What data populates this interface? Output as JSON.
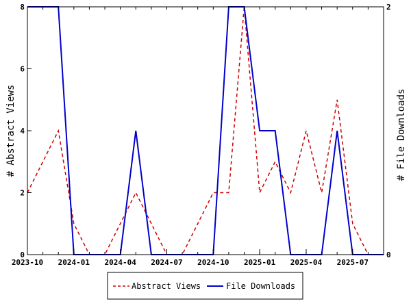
{
  "chart_data": {
    "type": "line",
    "x_ticks": [
      "2023-10",
      "2024-01",
      "2024-04",
      "2024-07",
      "2024-10",
      "2025-01",
      "2025-04",
      "2025-07"
    ],
    "y_left": {
      "label": "# Abstract Views",
      "ylim": [
        0,
        8
      ],
      "ticks": [
        "0",
        "2",
        "4",
        "6",
        "8"
      ]
    },
    "y_right": {
      "label": "# File Downloads",
      "ylim": [
        0,
        2
      ],
      "ticks": [
        "0",
        "2"
      ]
    },
    "xlim": [
      "2023-10",
      "2025-09"
    ],
    "series": [
      {
        "name": "Abstract Views",
        "axis": "left",
        "color": "#cc0000",
        "style": "dashed",
        "points": [
          [
            "2023-10",
            2
          ],
          [
            "2023-12",
            4
          ],
          [
            "2024-01",
            1
          ],
          [
            "2024-02",
            0
          ],
          [
            "2024-03",
            0
          ],
          [
            "2024-05",
            2
          ],
          [
            "2024-07",
            0
          ],
          [
            "2024-08",
            0
          ],
          [
            "2024-10",
            2
          ],
          [
            "2024-11",
            2
          ],
          [
            "2024-12",
            8
          ],
          [
            "2025-01",
            2
          ],
          [
            "2025-02",
            3
          ],
          [
            "2025-03",
            2
          ],
          [
            "2025-04",
            4
          ],
          [
            "2025-05",
            2
          ],
          [
            "2025-06",
            5
          ],
          [
            "2025-07",
            1
          ],
          [
            "2025-08",
            0
          ]
        ]
      },
      {
        "name": "File Downloads",
        "axis": "right",
        "color": "#0000cc",
        "style": "solid",
        "points": [
          [
            "2023-10",
            2
          ],
          [
            "2023-12",
            2
          ],
          [
            "2024-01",
            0
          ],
          [
            "2024-02",
            0
          ],
          [
            "2024-03",
            0
          ],
          [
            "2024-04",
            0
          ],
          [
            "2024-05",
            1
          ],
          [
            "2024-06",
            0
          ],
          [
            "2024-07",
            0
          ],
          [
            "2024-08",
            0
          ],
          [
            "2024-09",
            0
          ],
          [
            "2024-10",
            0
          ],
          [
            "2024-11",
            2
          ],
          [
            "2024-12",
            2
          ],
          [
            "2025-01",
            1
          ],
          [
            "2025-02",
            1
          ],
          [
            "2025-03",
            0
          ],
          [
            "2025-04",
            0
          ],
          [
            "2025-05",
            0
          ],
          [
            "2025-06",
            1
          ],
          [
            "2025-07",
            0
          ],
          [
            "2025-08",
            0
          ],
          [
            "2025-09",
            0
          ]
        ]
      }
    ],
    "legend": {
      "position": "bottom-center"
    },
    "grid": false
  }
}
